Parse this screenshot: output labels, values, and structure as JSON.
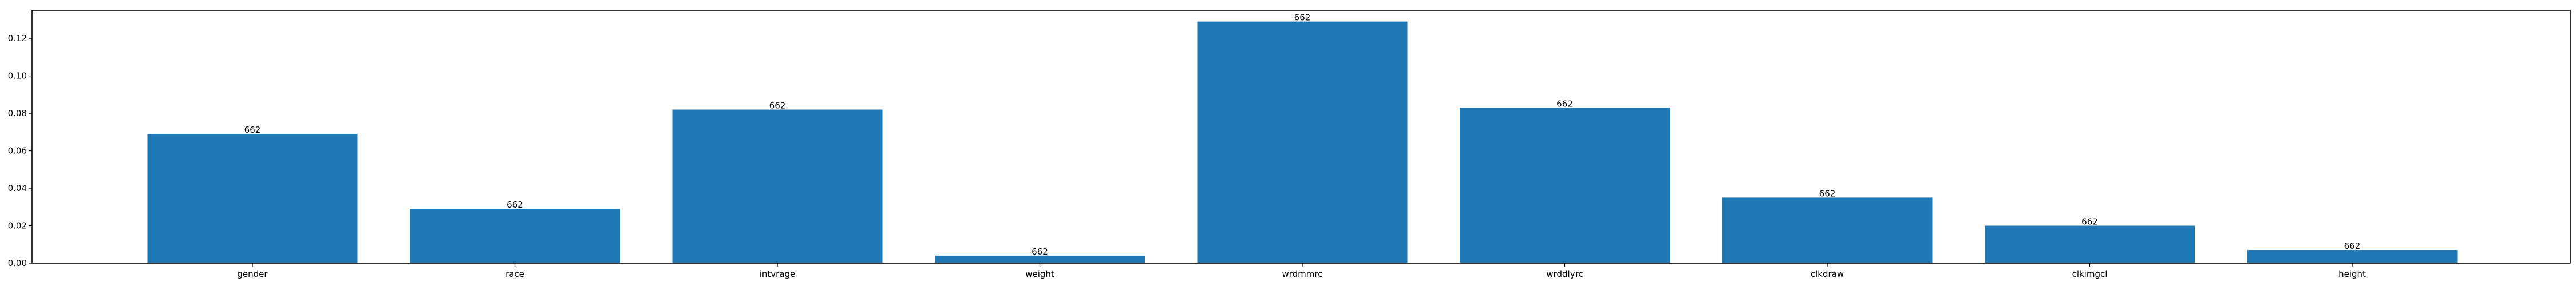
{
  "chart_data": {
    "type": "bar",
    "categories": [
      "gender",
      "race",
      "intvrage",
      "weight",
      "wrdmmrc",
      "wrddlyrc",
      "clkdraw",
      "clkimgcl",
      "height"
    ],
    "values": [
      0.069,
      0.029,
      0.082,
      0.004,
      0.129,
      0.083,
      0.035,
      0.02,
      0.007
    ],
    "bar_labels": [
      "662",
      "662",
      "662",
      "662",
      "662",
      "662",
      "662",
      "662",
      "662"
    ],
    "ylim": [
      0,
      0.135
    ],
    "yticks": [
      0.0,
      0.02,
      0.04,
      0.06,
      0.08,
      0.1,
      0.12
    ],
    "ytick_labels": [
      "0.00",
      "0.02",
      "0.04",
      "0.06",
      "0.08",
      "0.10",
      "0.12"
    ],
    "title": "",
    "xlabel": "",
    "ylabel": "",
    "grid": false,
    "bar_color": "#1f77b4"
  }
}
